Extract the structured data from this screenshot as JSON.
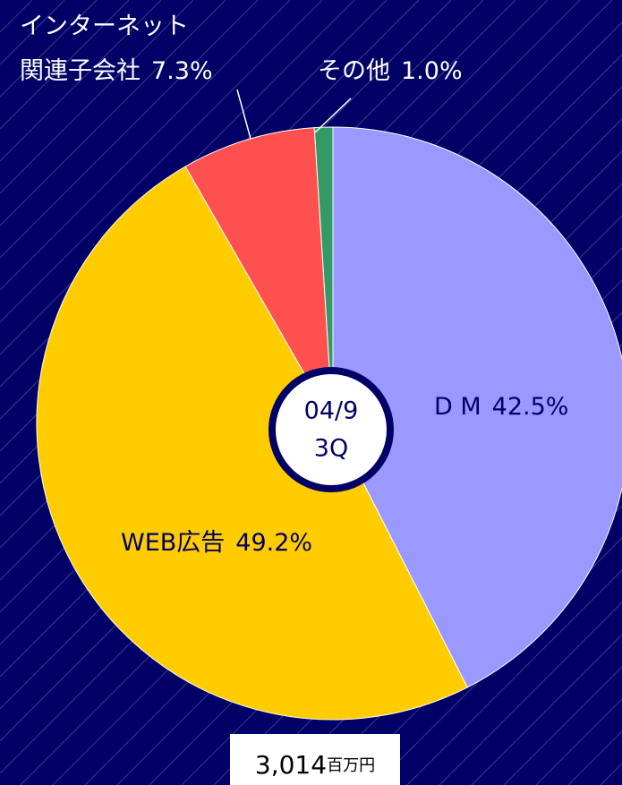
{
  "chart_data": {
    "type": "pie",
    "categories": [
      "D M",
      "WEB広告",
      "インターネット\n関連子会社",
      "その他"
    ],
    "values": [
      42.5,
      49.2,
      7.3,
      1.0
    ],
    "value_labels": [
      "42.5%",
      "49.2%",
      "7.3%",
      "1.0%"
    ],
    "colors": [
      "#9999ff",
      "#ffcc00",
      "#ff5050",
      "#339966"
    ],
    "center_label": [
      "04/9",
      "3Q"
    ],
    "total": "3,014",
    "total_unit": "百万円"
  }
}
